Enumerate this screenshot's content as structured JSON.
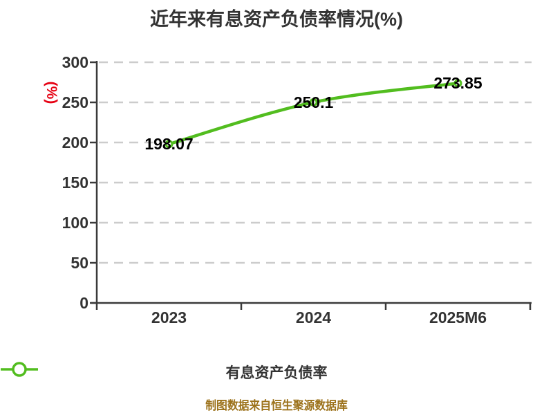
{
  "title": "近年来有息资产负债率情况(%)",
  "chart_data": {
    "type": "line",
    "title": "近年来有息资产负债率情况(%)",
    "categories": [
      "2023",
      "2024",
      "2025M6"
    ],
    "series": [
      {
        "name": "有息资产负债率",
        "values": [
          198.07,
          250.1,
          273.85
        ]
      }
    ],
    "xlabel": "",
    "ylabel": "(%)",
    "ylim": [
      0,
      300
    ],
    "yticks": [
      300,
      250,
      200,
      150,
      100,
      50,
      0
    ],
    "grid": "horizontal-dashed",
    "legend_position": "bottom",
    "smooth": true,
    "marker": "circle-white-fill-green-ring"
  },
  "legend": {
    "label": "有息资产负债率"
  },
  "footer": {
    "text": "制图数据来自恒生聚源数据库"
  },
  "colors": {
    "line": "#52bd1f",
    "axis": "#3a3a3a",
    "grid": "#cccccc",
    "tick_text": "#333333",
    "data_label": "#000000",
    "y_unit_label": "#e60012",
    "footer_text": "#9c721b",
    "background": "#ffffff"
  }
}
